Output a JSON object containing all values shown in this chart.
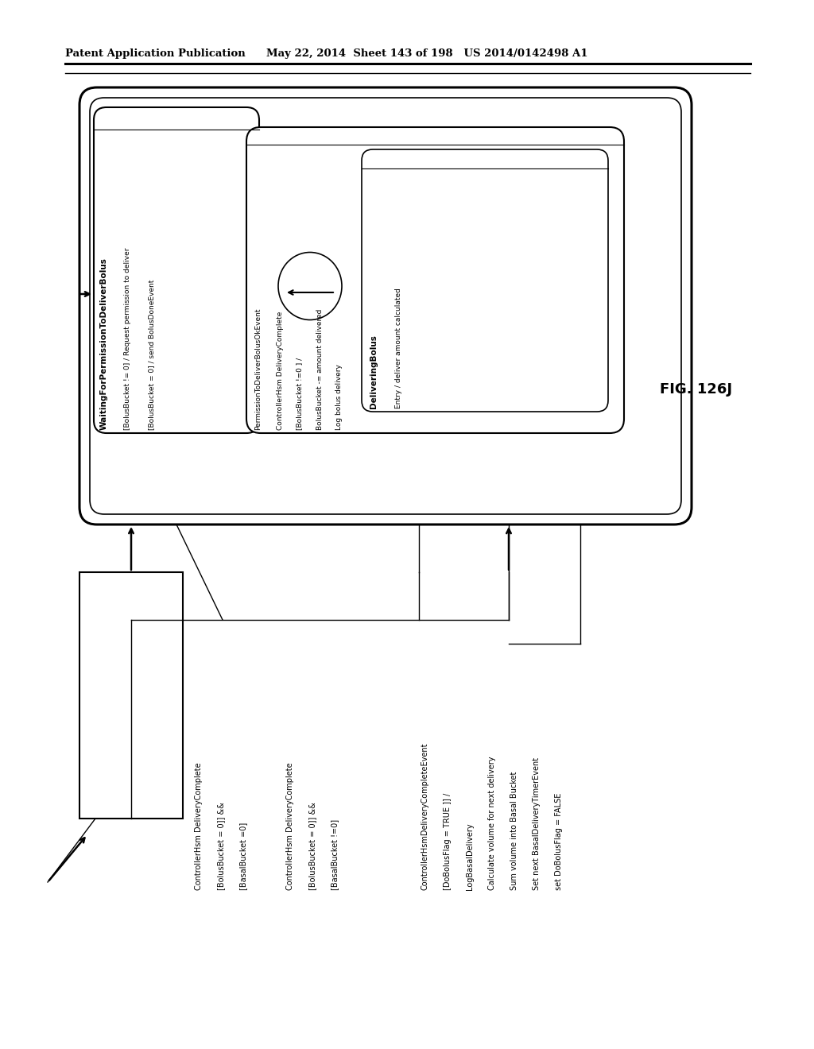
{
  "bg_color": "#ffffff",
  "header_pub": "Patent Application Publication",
  "header_date": "May 22, 2014  Sheet 143 of 198   US 2014/0142498 A1",
  "fig_label": "FIG. 126J",
  "waiting_title": "WaitingForPermissionToDeliverBolus",
  "waiting_line1": "[BolusBucket != 0] / Request permission to deliver",
  "waiting_line2": "[BolusBucket = 0] / send BolusDoneEvent",
  "perm_event": "PermissionToDeliverBolusOkEvent",
  "ctrl_line1": "ControllerHsm DeliveryComplete",
  "ctrl_line2": "[BolusBucket !=0 ] /",
  "ctrl_line3": "BolusBucket -= amount delivered",
  "ctrl_line4": "Log bolus delivery",
  "delivering_title": "DeliveringBolus",
  "delivering_entry": "Entry / deliver amount calculated",
  "arrow1_line1": "ControllerHsm DeliveryComplete",
  "arrow1_line2": "[BolusBucket = 0]] &&",
  "arrow1_line3": "[BasalBucket =0]",
  "arrow2_line1": "ControllerHsm DeliveryComplete",
  "arrow2_line2": "[BolusBucket = 0]] &&",
  "arrow2_line3": "[BasalBucket !=0]",
  "arrow3_line1": "ControllerHsmDeliveryCompleteEvent",
  "arrow3_line2": "[DoBolusFlag = TRUE ]] /",
  "arrow3_line3": "LogBasalDelivery",
  "arrow3_line4": "Calculate volume for next delivery",
  "arrow3_line5": "Sum volume into Basal Bucket",
  "arrow3_line6": "Set next BasalDeliveryTimerEvent",
  "arrow3_line7": "set DoBolusFlag = FALSE"
}
